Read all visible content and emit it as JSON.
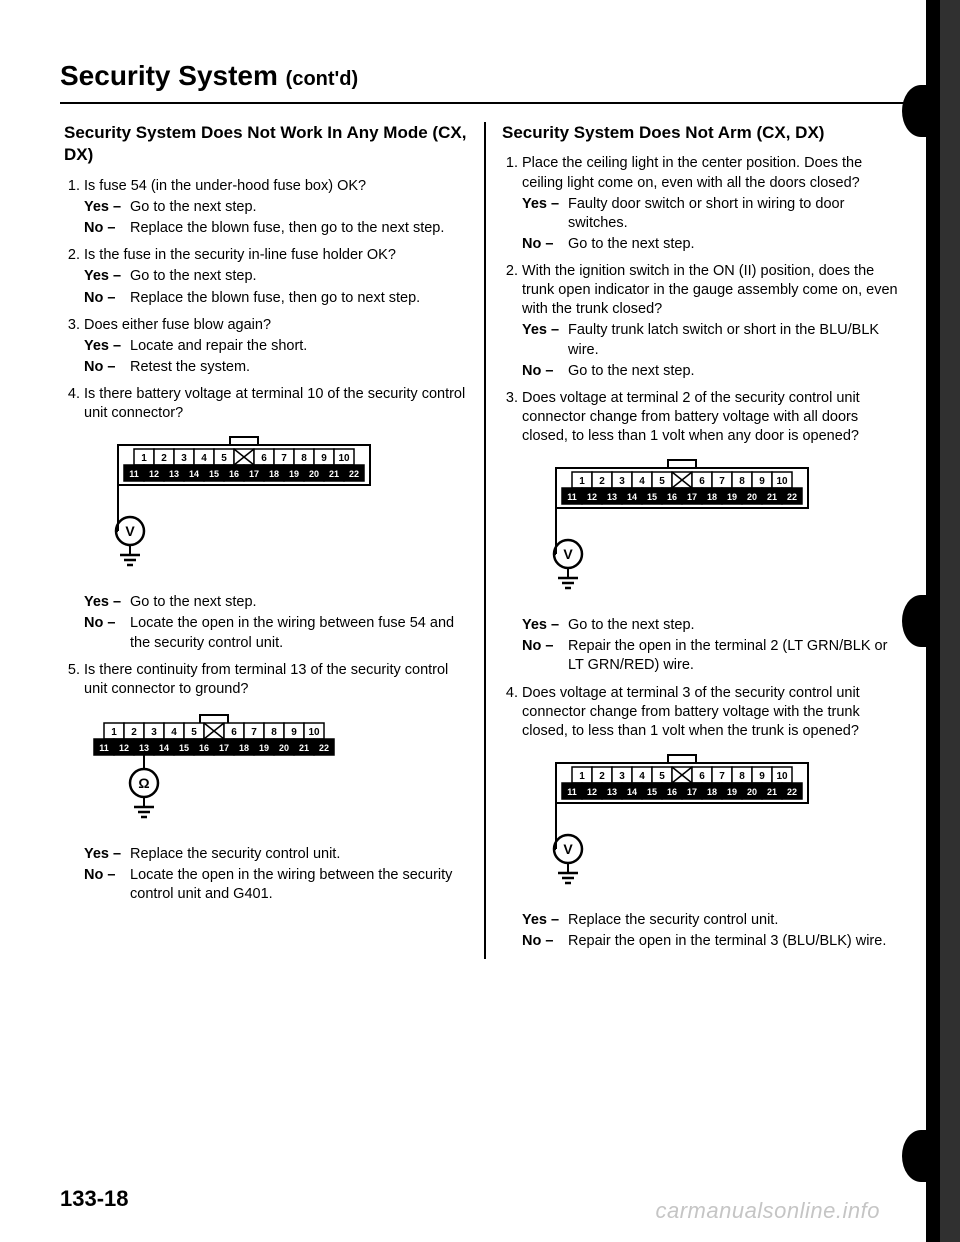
{
  "title_main": "Security System",
  "title_contd": "(cont'd)",
  "left": {
    "heading": "Security System Does Not Work In Any Mode (CX, DX)",
    "steps": [
      {
        "q": "Is fuse 54 (in the under-hood fuse box) OK?",
        "yes": "Go to the next step.",
        "no": "Replace the blown fuse, then go to the next step."
      },
      {
        "q": "Is the fuse in the security in-line fuse holder OK?",
        "yes": "Go to the next step.",
        "no": "Replace the blown fuse, then go to next step."
      },
      {
        "q": "Does either fuse blow again?",
        "yes": "Locate and repair the short.",
        "no": "Retest the system."
      },
      {
        "q": "Is there battery voltage at terminal 10 of the security control unit connector?",
        "diagram": "V",
        "yes": "Go to the next step.",
        "no": "Locate the open in the wiring between fuse 54 and the security control unit."
      },
      {
        "q": "Is there continuity from terminal 13 of the security control unit connector to ground?",
        "diagram": "Ω",
        "yes": "Replace the security control unit.",
        "no": "Locate the open in the wiring between the security control unit and G401."
      }
    ]
  },
  "right": {
    "heading": "Security System Does Not Arm (CX, DX)",
    "steps": [
      {
        "q": "Place the ceiling light in the center position. Does the ceiling light come on, even with all the doors closed?",
        "yes": "Faulty door switch or short in wiring to door switches.",
        "no": "Go to the next step."
      },
      {
        "q": "With the ignition switch in the ON (II) position, does the trunk open indicator in the gauge assembly come on, even with the trunk closed?",
        "yes": "Faulty trunk latch switch or short in the BLU/BLK wire.",
        "no": "Go to the next step."
      },
      {
        "q": "Does voltage at terminal 2 of the security control unit connector change from battery voltage with all doors closed, to less than 1 volt when any door is opened?",
        "diagram": "V",
        "yes": "Go to the next step.",
        "no": "Repair the open in the terminal 2 (LT GRN/BLK or LT GRN/RED) wire."
      },
      {
        "q": "Does voltage at terminal 3 of the security control unit connector change from battery voltage with the trunk closed, to less than 1 volt when the trunk is opened?",
        "diagram": "V",
        "yes": "Replace the security control unit.",
        "no": "Repair the open in the terminal 3 (BLU/BLK) wire."
      }
    ]
  },
  "connector": {
    "top_row": [
      "1",
      "2",
      "3",
      "4",
      "5",
      "6",
      "7",
      "8",
      "9",
      "10"
    ],
    "bottom_row": [
      "11",
      "12",
      "13",
      "14",
      "15",
      "16",
      "17",
      "18",
      "19",
      "20",
      "21",
      "22"
    ],
    "colors": {
      "line": "#000000",
      "fill_top": "#ffffff",
      "fill_bottom": "#000000",
      "text_top": "#000000",
      "text_bottom": "#ffffff"
    }
  },
  "page_number": "133-18",
  "watermark": "carmanualsonline.info",
  "labels": {
    "yes": "Yes –",
    "no": "No –"
  }
}
